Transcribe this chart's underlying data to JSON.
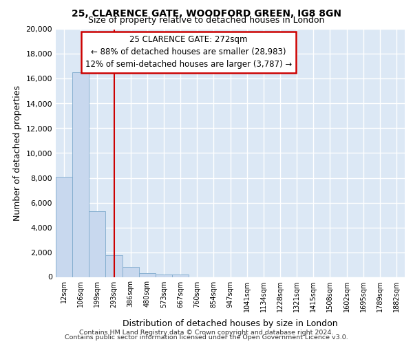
{
  "title1": "25, CLARENCE GATE, WOODFORD GREEN, IG8 8GN",
  "title2": "Size of property relative to detached houses in London",
  "xlabel": "Distribution of detached houses by size in London",
  "ylabel": "Number of detached properties",
  "bar_values": [
    8100,
    16500,
    5300,
    1750,
    800,
    300,
    200,
    200,
    0,
    0,
    0,
    0,
    0,
    0,
    0,
    0,
    0,
    0,
    0,
    0,
    0
  ],
  "bar_labels": [
    "12sqm",
    "106sqm",
    "199sqm",
    "293sqm",
    "386sqm",
    "480sqm",
    "573sqm",
    "667sqm",
    "760sqm",
    "854sqm",
    "947sqm",
    "1041sqm",
    "1134sqm",
    "1228sqm",
    "1321sqm",
    "1415sqm",
    "1508sqm",
    "1602sqm",
    "1695sqm",
    "1789sqm",
    "1882sqm"
  ],
  "bar_color": "#c8d8ee",
  "bar_edge_color": "#7eaacc",
  "red_line_x": 3.0,
  "annotation_text": "25 CLARENCE GATE: 272sqm\n← 88% of detached houses are smaller (28,983)\n12% of semi-detached houses are larger (3,787) →",
  "annotation_box_color": "#ffffff",
  "annotation_box_edge": "#cc0000",
  "red_line_color": "#cc0000",
  "ylim": [
    0,
    20000
  ],
  "yticks": [
    0,
    2000,
    4000,
    6000,
    8000,
    10000,
    12000,
    14000,
    16000,
    18000,
    20000
  ],
  "background_color": "#dce8f5",
  "grid_color": "#ffffff",
  "footer_line1": "Contains HM Land Registry data © Crown copyright and database right 2024.",
  "footer_line2": "Contains public sector information licensed under the Open Government Licence v3.0.",
  "title1_fontsize": 10,
  "title2_fontsize": 9,
  "xlabel_fontsize": 9,
  "ylabel_fontsize": 9,
  "annotation_fontsize": 8.5
}
